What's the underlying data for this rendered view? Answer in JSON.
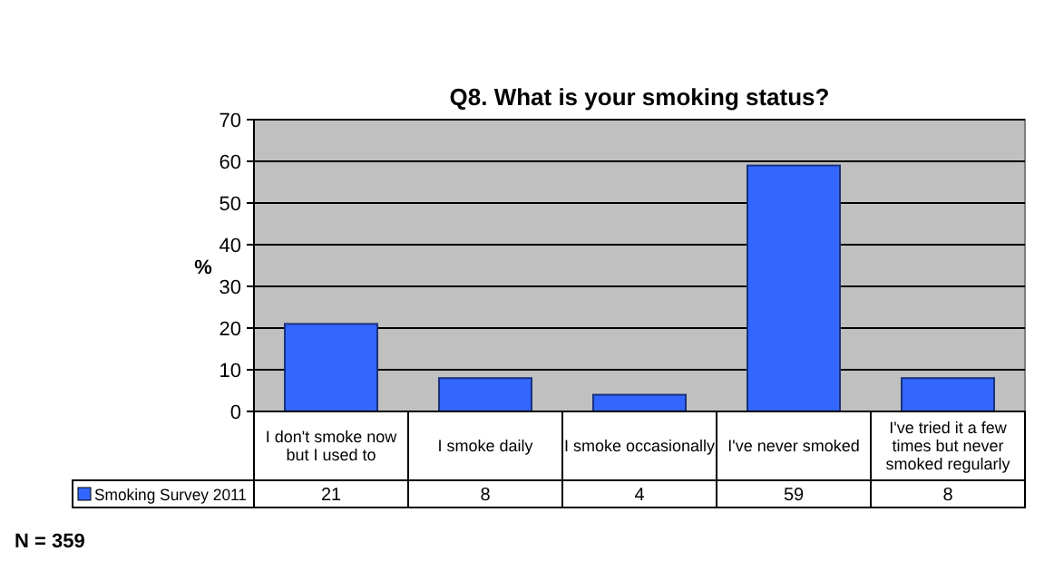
{
  "chart_data": {
    "type": "bar",
    "title": "Q8. What is your smoking status?",
    "ylabel": "%",
    "categories": [
      "I don't smoke now but I used to",
      "I smoke daily",
      "I smoke occasionally",
      "I've never smoked",
      "I've tried it a few times but never smoked regularly"
    ],
    "series": [
      {
        "name": "Smoking Survey 2011",
        "color": "#3366ff",
        "values": [
          21,
          8,
          4,
          59,
          8
        ]
      }
    ],
    "ylim": [
      0,
      70
    ],
    "yticks": [
      0,
      10,
      20,
      30,
      40,
      50,
      60,
      70
    ],
    "grid": "y",
    "data_labels": true,
    "annotations": [
      "N = 359"
    ]
  }
}
